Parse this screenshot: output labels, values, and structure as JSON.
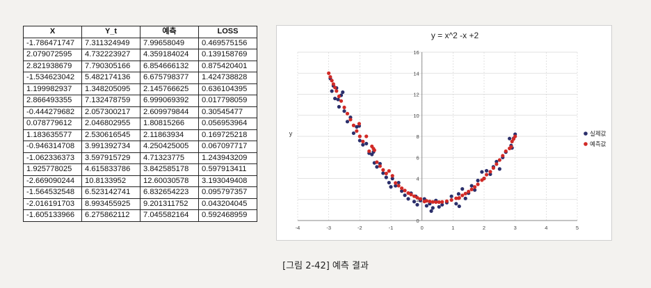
{
  "table": {
    "headers": [
      "X",
      "Y_t",
      "예측",
      "LOSS"
    ],
    "rows": [
      [
        "-1.786471747",
        "7.311324949",
        "7.99658049",
        "0.469575156"
      ],
      [
        "2.079072595",
        "4.732223927",
        "4.359184024",
        "0.139158769"
      ],
      [
        "2.821938679",
        "7.790305166",
        "6.854666132",
        "0.875420401"
      ],
      [
        "-1.534623042",
        "5.482174136",
        "6.675798377",
        "1.424738828"
      ],
      [
        "1.199982937",
        "1.348205095",
        "2.145766625",
        "0.636104395"
      ],
      [
        "2.866493355",
        "7.132478759",
        "6.999069392",
        "0.017798059"
      ],
      [
        "-0.444279682",
        "2.057300217",
        "2.609979844",
        "0.30545477"
      ],
      [
        "0.078779612",
        "2.046802955",
        "1.80815266",
        "0.056953964"
      ],
      [
        "1.183635577",
        "2.530616545",
        "2.11863934",
        "0.169725218"
      ],
      [
        "-0.946314708",
        "3.991392734",
        "4.250425005",
        "0.067097717"
      ],
      [
        "-1.062336373",
        "3.597915729",
        "4.71323775",
        "1.243943209"
      ],
      [
        "1.925778025",
        "4.615833786",
        "3.842585178",
        "0.597913411"
      ],
      [
        "-2.669090244",
        "10.8133952",
        "12.60030578",
        "3.193049408"
      ],
      [
        "-1.564532548",
        "6.523142741",
        "6.832654223",
        "0.095797357"
      ],
      [
        "-2.016191703",
        "8.993455925",
        "9.201311752",
        "0.043204045"
      ],
      [
        "-1.605133966",
        "6.275862112",
        "7.045582164",
        "0.592468959"
      ]
    ]
  },
  "chart_data": {
    "type": "scatter",
    "title": "y = x^2 -x +2",
    "xlabel": "",
    "ylabel": "y",
    "xlim": [
      -4,
      5
    ],
    "ylim": [
      0,
      16
    ],
    "x_ticks": [
      "-4",
      "-3",
      "-2",
      "-1",
      "0",
      "1",
      "2",
      "3",
      "4",
      "5"
    ],
    "y_ticks": [
      "0",
      "2",
      "4",
      "6",
      "8",
      "10",
      "12",
      "14",
      "16"
    ],
    "grid": true,
    "legend": "right",
    "series": [
      {
        "name": "실제값",
        "color": "#2b2f6b",
        "points": [
          [
            -2.95,
            13.5
          ],
          [
            -2.9,
            12.3
          ],
          [
            -2.85,
            12.8
          ],
          [
            -2.8,
            11.6
          ],
          [
            -2.75,
            12.6
          ],
          [
            -2.7,
            11.5
          ],
          [
            -2.67,
            10.81
          ],
          [
            -2.6,
            11.9
          ],
          [
            -2.5,
            10.4
          ],
          [
            -2.4,
            9.4
          ],
          [
            -2.3,
            9.8
          ],
          [
            -2.2,
            8.3
          ],
          [
            -2.1,
            8.9
          ],
          [
            -2.02,
            8.99
          ],
          [
            -2.0,
            7.6
          ],
          [
            -1.9,
            7.2
          ],
          [
            -1.79,
            7.31
          ],
          [
            -1.7,
            6.4
          ],
          [
            -1.61,
            6.28
          ],
          [
            -1.56,
            6.52
          ],
          [
            -1.53,
            5.48
          ],
          [
            -1.45,
            5.1
          ],
          [
            -1.35,
            5.4
          ],
          [
            -1.25,
            4.5
          ],
          [
            -1.15,
            4.1
          ],
          [
            -1.06,
            3.6
          ],
          [
            -0.95,
            3.99
          ],
          [
            -0.85,
            3.3
          ],
          [
            -0.75,
            3.6
          ],
          [
            -0.65,
            2.8
          ],
          [
            -0.55,
            2.4
          ],
          [
            -0.44,
            2.06
          ],
          [
            -0.35,
            2.6
          ],
          [
            -0.25,
            1.8
          ],
          [
            -0.15,
            1.5
          ],
          [
            -0.05,
            1.9
          ],
          [
            0.08,
            2.05
          ],
          [
            0.15,
            1.4
          ],
          [
            0.25,
            1.6
          ],
          [
            0.35,
            1.2
          ],
          [
            0.45,
            1.9
          ],
          [
            0.55,
            1.3
          ],
          [
            0.65,
            1.5
          ],
          [
            0.8,
            1.7
          ],
          [
            0.95,
            2.3
          ],
          [
            1.1,
            1.6
          ],
          [
            1.18,
            2.53
          ],
          [
            1.2,
            1.35
          ],
          [
            1.3,
            3.0
          ],
          [
            1.4,
            2.1
          ],
          [
            1.5,
            2.6
          ],
          [
            1.6,
            3.3
          ],
          [
            1.7,
            2.9
          ],
          [
            1.8,
            3.8
          ],
          [
            1.93,
            4.62
          ],
          [
            2.0,
            4.0
          ],
          [
            2.08,
            4.73
          ],
          [
            2.2,
            4.4
          ],
          [
            2.3,
            5.1
          ],
          [
            2.4,
            5.6
          ],
          [
            2.5,
            4.9
          ],
          [
            2.6,
            6.0
          ],
          [
            2.7,
            6.5
          ],
          [
            2.82,
            7.79
          ],
          [
            2.87,
            7.13
          ],
          [
            2.95,
            7.8
          ],
          [
            3.0,
            8.2
          ],
          [
            2.9,
            6.9
          ],
          [
            -2.55,
            12.2
          ],
          [
            -0.2,
            2.3
          ],
          [
            0.3,
            0.9
          ],
          [
            -1.0,
            3.2
          ]
        ]
      },
      {
        "name": "예측값",
        "color": "#d12a26",
        "points": [
          [
            -3.0,
            14.0
          ],
          [
            -2.95,
            13.65
          ],
          [
            -2.9,
            13.3
          ],
          [
            -2.85,
            12.97
          ],
          [
            -2.8,
            12.64
          ],
          [
            -2.75,
            12.31
          ],
          [
            -2.67,
            11.8
          ],
          [
            -2.6,
            11.36
          ],
          [
            -2.5,
            10.75
          ],
          [
            -2.4,
            10.16
          ],
          [
            -2.3,
            9.59
          ],
          [
            -2.2,
            9.04
          ],
          [
            -2.1,
            8.51
          ],
          [
            -2.02,
            9.2
          ],
          [
            -2.0,
            8.0
          ],
          [
            -1.9,
            7.51
          ],
          [
            -1.79,
            8.0
          ],
          [
            -1.7,
            6.59
          ],
          [
            -1.61,
            7.05
          ],
          [
            -1.56,
            6.83
          ],
          [
            -1.53,
            6.68
          ],
          [
            -1.45,
            5.55
          ],
          [
            -1.35,
            5.17
          ],
          [
            -1.25,
            4.81
          ],
          [
            -1.15,
            4.47
          ],
          [
            -1.06,
            4.71
          ],
          [
            -0.95,
            4.25
          ],
          [
            -0.85,
            3.57
          ],
          [
            -0.75,
            3.31
          ],
          [
            -0.65,
            3.07
          ],
          [
            -0.55,
            2.85
          ],
          [
            -0.44,
            2.61
          ],
          [
            -0.35,
            2.47
          ],
          [
            -0.25,
            2.31
          ],
          [
            -0.15,
            2.17
          ],
          [
            -0.05,
            2.05
          ],
          [
            0.08,
            1.81
          ],
          [
            0.15,
            1.87
          ],
          [
            0.25,
            1.81
          ],
          [
            0.35,
            1.77
          ],
          [
            0.45,
            1.75
          ],
          [
            0.55,
            1.75
          ],
          [
            0.65,
            1.77
          ],
          [
            0.8,
            1.84
          ],
          [
            0.95,
            1.95
          ],
          [
            1.1,
            2.11
          ],
          [
            1.18,
            2.12
          ],
          [
            1.2,
            2.15
          ],
          [
            1.3,
            2.39
          ],
          [
            1.4,
            2.56
          ],
          [
            1.5,
            2.75
          ],
          [
            1.6,
            2.96
          ],
          [
            1.7,
            3.19
          ],
          [
            1.8,
            3.44
          ],
          [
            1.93,
            3.84
          ],
          [
            2.0,
            4.0
          ],
          [
            2.08,
            4.36
          ],
          [
            2.2,
            4.64
          ],
          [
            2.3,
            4.99
          ],
          [
            2.4,
            5.36
          ],
          [
            2.5,
            5.75
          ],
          [
            2.6,
            6.16
          ],
          [
            2.7,
            6.59
          ],
          [
            2.82,
            6.85
          ],
          [
            2.87,
            7.0
          ],
          [
            2.95,
            7.75
          ],
          [
            3.0,
            8.0
          ],
          [
            2.9,
            7.51
          ]
        ]
      }
    ]
  },
  "caption": "[그림 2-42] 예측 결과"
}
